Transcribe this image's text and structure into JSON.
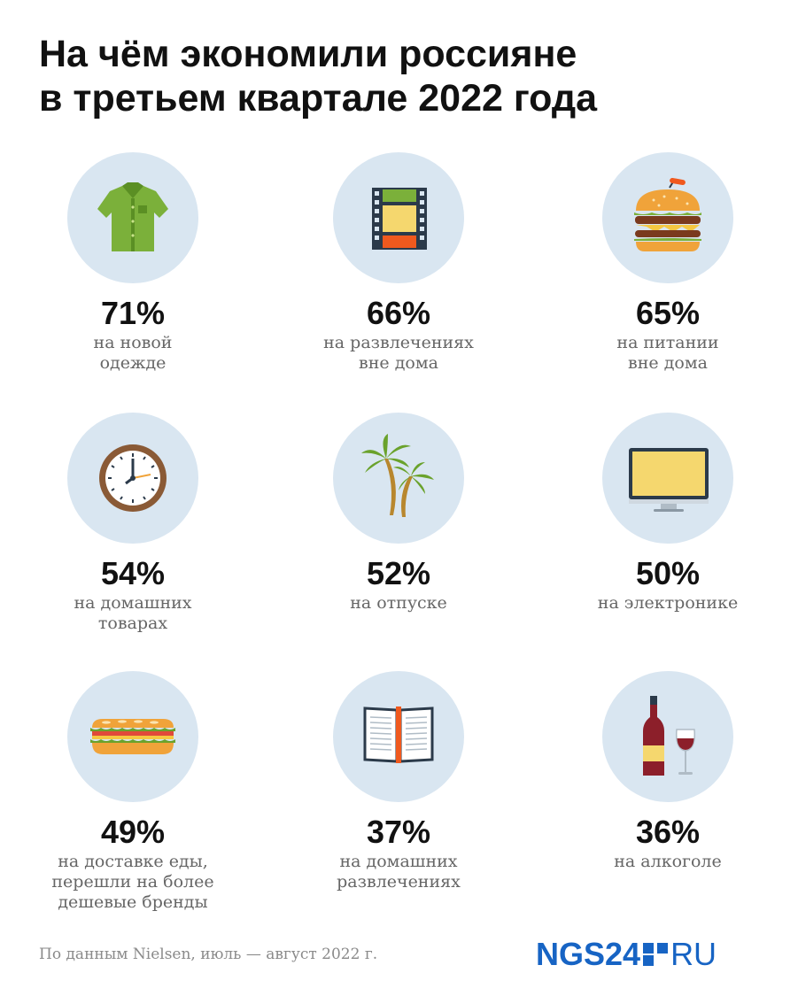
{
  "title": "На чём экономили россияне\nв третьем квартале 2022 года",
  "chart_data": {
    "type": "table",
    "title": "На чём экономили россияне в третьем квартале 2022 года",
    "items": [
      {
        "value": "71%",
        "label": "на новой\nодежде",
        "icon": "shirt-icon"
      },
      {
        "value": "66%",
        "label": "на развлечениях\nвне дома",
        "icon": "film-strip-icon"
      },
      {
        "value": "65%",
        "label": "на питании\nвне дома",
        "icon": "burger-icon"
      },
      {
        "value": "54%",
        "label": "на домашних\nтоварах",
        "icon": "clock-icon"
      },
      {
        "value": "52%",
        "label": "на отпуске",
        "icon": "palm-trees-icon"
      },
      {
        "value": "50%",
        "label": "на электронике",
        "icon": "monitor-icon"
      },
      {
        "value": "49%",
        "label": "на доставке еды,\nперешли на более\nдешевые бренды",
        "icon": "sandwich-icon"
      },
      {
        "value": "37%",
        "label": "на домашних\nразвлечениях",
        "icon": "book-icon"
      },
      {
        "value": "36%",
        "label": "на алкоголе",
        "icon": "wine-icon"
      }
    ]
  },
  "source": "По данным Nielsen, июль — август 2022 г.",
  "logo": {
    "left": "NGS24",
    "right": "RU"
  },
  "colors": {
    "circle": "#d9e6f1",
    "logo": "#1764c4",
    "text_muted": "#666666"
  }
}
